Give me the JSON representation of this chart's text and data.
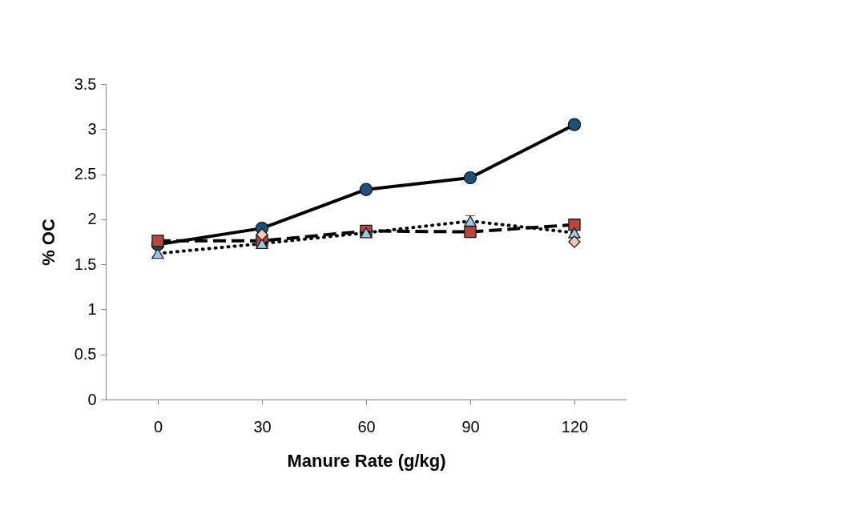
{
  "chart_data": {
    "type": "line",
    "xlabel": "Manure Rate (g/kg)",
    "ylabel": "% OC",
    "categories": [
      "0",
      "30",
      "60",
      "90",
      "120"
    ],
    "ylim": [
      0,
      3.5
    ],
    "yticks": [
      0,
      0.5,
      1,
      1.5,
      2,
      2.5,
      3,
      3.5
    ],
    "series": [
      {
        "color": "#1d4f7a",
        "marker": "circle",
        "line_style": "solid",
        "values": [
          1.72,
          1.9,
          2.33,
          2.46,
          3.05
        ]
      },
      {
        "color": "#b5483c",
        "marker": "square",
        "line_style": "dashed",
        "values": [
          1.76,
          1.76,
          1.87,
          1.86,
          1.94
        ]
      },
      {
        "color": "#9fc4e8",
        "marker": "triangle",
        "line_style": "dotted",
        "values": [
          1.62,
          1.73,
          1.85,
          1.98,
          1.85
        ],
        "errors": [
          null,
          null,
          null,
          0.06,
          null
        ]
      },
      {
        "type": "scatter",
        "color": "#f4c6b6",
        "marker": "diamond",
        "values": [
          null,
          1.83,
          null,
          null,
          1.75
        ]
      }
    ]
  }
}
